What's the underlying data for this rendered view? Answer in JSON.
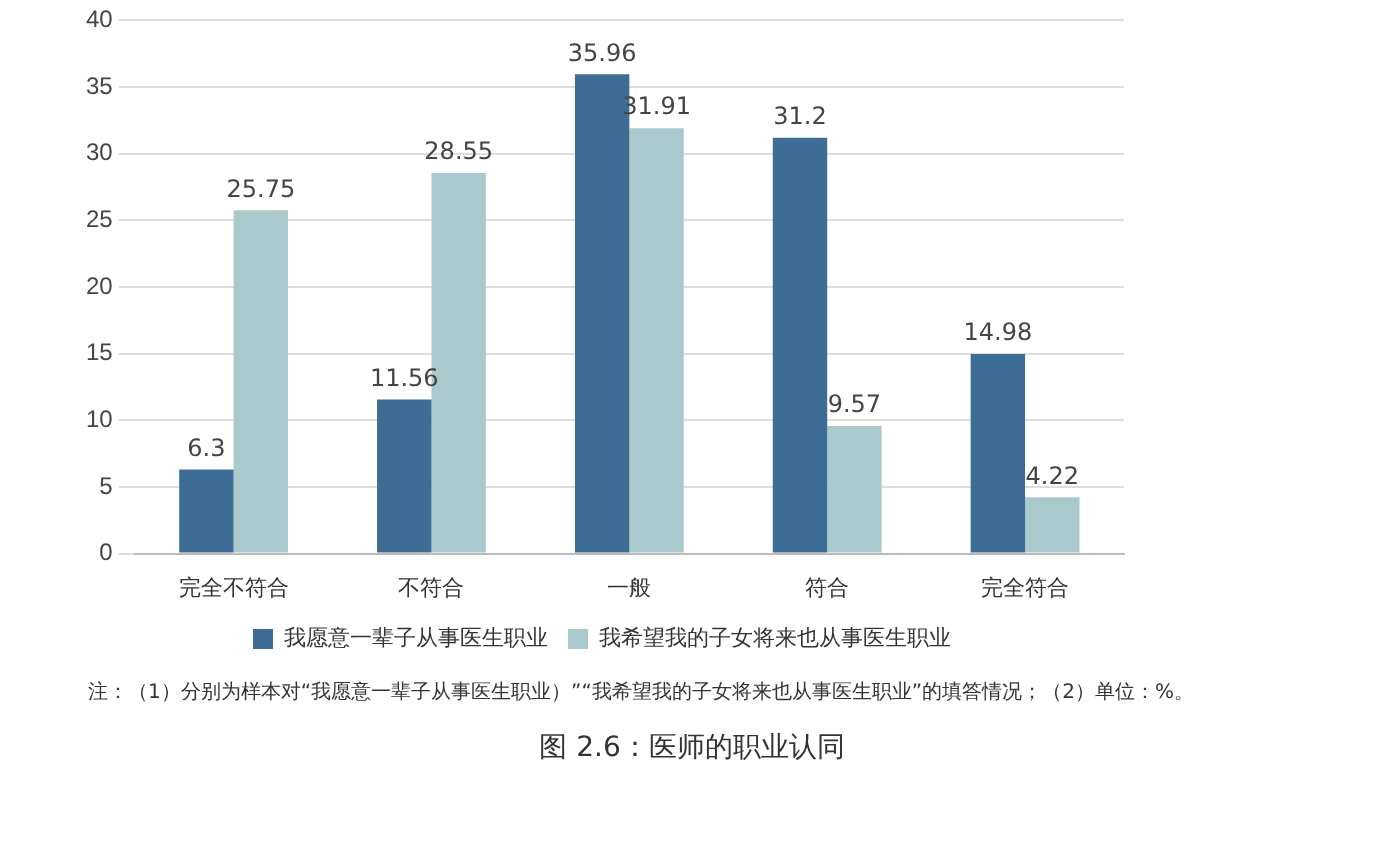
{
  "chart_data": {
    "type": "bar",
    "title": "图 2.6：医师的职业认同",
    "categories": [
      "完全不符合",
      "不符合",
      "一般",
      "符合",
      "完全符合"
    ],
    "series": [
      {
        "name": "我愿意一辈子从事医生职业",
        "color": "#3d6d95",
        "values": [
          6.3,
          11.56,
          35.96,
          31.2,
          14.98
        ]
      },
      {
        "name": "我希望我的子女将来也从事医生职业",
        "color": "#a9c9cc",
        "values": [
          25.75,
          28.55,
          31.91,
          9.57,
          4.22
        ]
      }
    ],
    "ylim": [
      0,
      40
    ],
    "yticks": [
      0,
      5,
      10,
      15,
      20,
      25,
      30,
      35,
      40
    ],
    "grid": "y",
    "legend": "bottom",
    "data_labels": true,
    "annotations": [
      "注：（1）分别为样本对“我愿意一辈子从事医生职业）”“我希望我的子女将来也从事医生职业”的填答情况；（2）单位：%。"
    ]
  }
}
